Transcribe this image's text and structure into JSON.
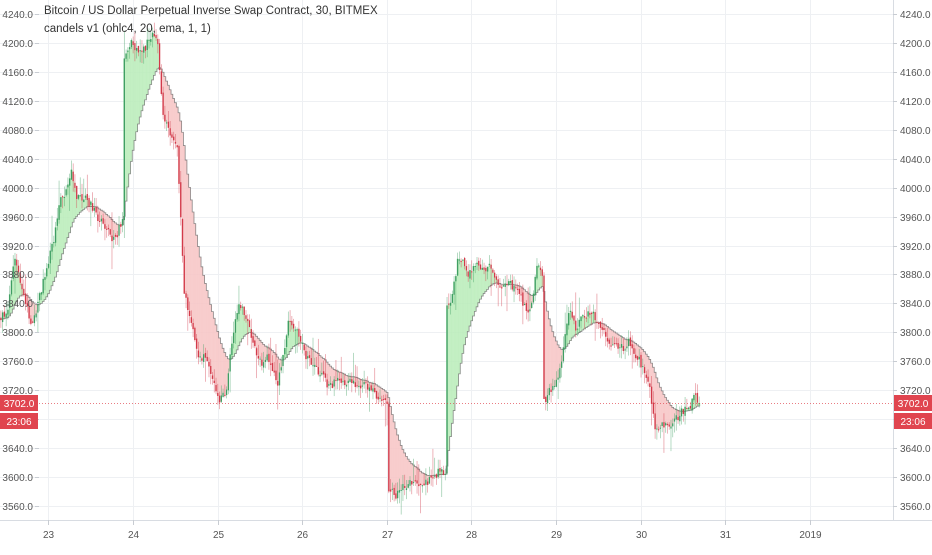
{
  "header": {
    "title": "Bitcoin / US Dollar Perpetual Inverse Swap Contract, 30, BITMEX",
    "indicator": "candels v1 (ohlc4, 20, ema, 1, 1)"
  },
  "badges": {
    "price": "3702.0",
    "timer": "23:06"
  },
  "colors": {
    "up": "#3f9e63",
    "down": "#d23a4a",
    "up_fill": "#b9ecb9",
    "down_fill": "#f7c4c4",
    "grid": "#eef0f3",
    "axis_text": "#555555",
    "badge": "#e0454f"
  },
  "chart_data": {
    "type": "candlestick",
    "symbol": "XBTUSD",
    "interval": "30",
    "ylim": [
      3540,
      4260
    ],
    "y_ticks": [
      3560,
      3600,
      3640,
      3680,
      3720,
      3760,
      3800,
      3840,
      3880,
      3920,
      3960,
      4000,
      4040,
      4080,
      4120,
      4160,
      4200,
      4240
    ],
    "y_tick_labels": [
      "3560.0",
      "3600.0",
      "3640.0",
      "3680.0",
      "3720.0",
      "3760.0",
      "3800.0",
      "3840.0",
      "3880.0",
      "3920.0",
      "3960.0",
      "4000.0",
      "4040.0",
      "4080.0",
      "4120.0",
      "4160.0",
      "4200.0",
      "4240.0"
    ],
    "x_ticks": [
      {
        "label": "23",
        "day": 1
      },
      {
        "label": "24",
        "day": 2
      },
      {
        "label": "25",
        "day": 3
      },
      {
        "label": "26",
        "day": 4
      },
      {
        "label": "27",
        "day": 5
      },
      {
        "label": "28",
        "day": 6
      },
      {
        "label": "29",
        "day": 7
      },
      {
        "label": "30",
        "day": 8
      },
      {
        "label": "31",
        "day": 9
      },
      {
        "label": "2019",
        "day": 10
      }
    ],
    "x_range_days": [
      0.43,
      10.98
    ],
    "bars_per_day": 48,
    "close_path": [
      [
        0,
        3822
      ],
      [
        4,
        3830
      ],
      [
        8,
        3905
      ],
      [
        12,
        3860
      ],
      [
        17,
        3812
      ],
      [
        20,
        3828
      ],
      [
        25,
        3882
      ],
      [
        30,
        3925
      ],
      [
        33,
        3978
      ],
      [
        36,
        3990
      ],
      [
        40,
        4020
      ],
      [
        43,
        3990
      ],
      [
        48,
        3985
      ],
      [
        52,
        3972
      ],
      [
        55,
        3958
      ],
      [
        58,
        3952
      ],
      [
        62,
        3933
      ],
      [
        65,
        3928
      ],
      [
        69,
        3958
      ],
      [
        70,
        4185
      ],
      [
        74,
        4200
      ],
      [
        78,
        4185
      ],
      [
        82,
        4195
      ],
      [
        86,
        4215
      ],
      [
        89,
        4195
      ],
      [
        92,
        4098
      ],
      [
        95,
        4082
      ],
      [
        98,
        4068
      ],
      [
        100,
        4062
      ],
      [
        104,
        3855
      ],
      [
        108,
        3808
      ],
      [
        112,
        3770
      ],
      [
        116,
        3762
      ],
      [
        120,
        3738
      ],
      [
        124,
        3705
      ],
      [
        128,
        3722
      ],
      [
        132,
        3805
      ],
      [
        135,
        3838
      ],
      [
        138,
        3828
      ],
      [
        141,
        3805
      ],
      [
        144,
        3778
      ],
      [
        148,
        3752
      ],
      [
        151,
        3768
      ],
      [
        154,
        3752
      ],
      [
        157,
        3728
      ],
      [
        160,
        3765
      ],
      [
        163,
        3818
      ],
      [
        166,
        3808
      ],
      [
        170,
        3790
      ],
      [
        173,
        3768
      ],
      [
        177,
        3758
      ],
      [
        180,
        3745
      ],
      [
        183,
        3738
      ],
      [
        186,
        3725
      ],
      [
        190,
        3732
      ],
      [
        194,
        3728
      ],
      [
        198,
        3732
      ],
      [
        203,
        3728
      ],
      [
        208,
        3725
      ],
      [
        212,
        3715
      ],
      [
        216,
        3705
      ],
      [
        219,
        3705
      ],
      [
        220,
        3585
      ],
      [
        224,
        3575
      ],
      [
        228,
        3585
      ],
      [
        232,
        3592
      ],
      [
        236,
        3588
      ],
      [
        240,
        3590
      ],
      [
        244,
        3598
      ],
      [
        248,
        3605
      ],
      [
        252,
        3608
      ],
      [
        253,
        3835
      ],
      [
        256,
        3852
      ],
      [
        259,
        3898
      ],
      [
        262,
        3900
      ],
      [
        265,
        3880
      ],
      [
        268,
        3888
      ],
      [
        271,
        3893
      ],
      [
        274,
        3885
      ],
      [
        277,
        3892
      ],
      [
        280,
        3880
      ],
      [
        284,
        3862
      ],
      [
        288,
        3870
      ],
      [
        291,
        3860
      ],
      [
        295,
        3848
      ],
      [
        298,
        3828
      ],
      [
        301,
        3842
      ],
      [
        304,
        3890
      ],
      [
        307,
        3880
      ],
      [
        308,
        3705
      ],
      [
        311,
        3718
      ],
      [
        314,
        3730
      ],
      [
        317,
        3748
      ],
      [
        320,
        3798
      ],
      [
        323,
        3832
      ],
      [
        326,
        3805
      ],
      [
        329,
        3820
      ],
      [
        332,
        3822
      ],
      [
        335,
        3830
      ],
      [
        338,
        3818
      ],
      [
        341,
        3805
      ],
      [
        344,
        3790
      ],
      [
        347,
        3782
      ],
      [
        350,
        3778
      ],
      [
        353,
        3778
      ],
      [
        356,
        3790
      ],
      [
        359,
        3772
      ],
      [
        362,
        3762
      ],
      [
        365,
        3742
      ],
      [
        368,
        3722
      ],
      [
        371,
        3662
      ],
      [
        374,
        3672
      ],
      [
        377,
        3670
      ],
      [
        380,
        3672
      ],
      [
        383,
        3680
      ],
      [
        386,
        3690
      ],
      [
        389,
        3692
      ],
      [
        391,
        3698
      ],
      [
        393,
        3713
      ],
      [
        395,
        3705
      ],
      [
        396,
        3702
      ]
    ],
    "band_length": 20,
    "band_type": "ema",
    "band_source": "ohlc4",
    "last_price": 3702.0,
    "countdown": "23:06",
    "grid": true,
    "legend_position": "top-left"
  }
}
